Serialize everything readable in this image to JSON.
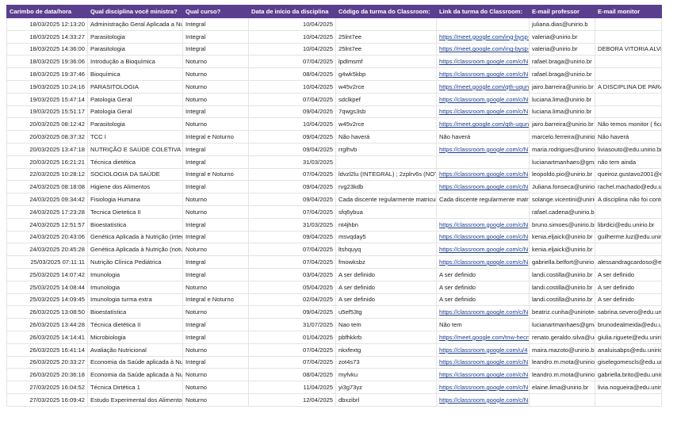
{
  "table": {
    "header": [
      "Carimbo de data/hora",
      "Qual disciplina você ministra?",
      "Qual curso?",
      "Data de início da disciplina",
      "Código da turma do Classroom:",
      "Link da turma do Classroom:",
      "E-mail professor",
      "E-mail monitor"
    ],
    "rows": [
      [
        "18/03/2025 12:13:20",
        "Administração Geral Aplicada a Nutr",
        "Integral",
        "10/04/2025",
        null,
        null,
        "juliana.dias@unirio.b",
        null
      ],
      [
        "18/03/2025 14:33:27",
        "Parasitologia",
        "Integral",
        "10/04/2025",
        "25lnt7ee",
        "https://meet.google.com/ing-bysp-",
        "valeria@unirio.br",
        null
      ],
      [
        "18/03/2025 14:36:00",
        "Parasitologia",
        "Integral",
        "10/04/2025",
        "25lnt7ee",
        "https://meet.google.com/ing-bysp-",
        "valeria@unirio.br",
        "DEBORA VITORIA ALVES"
      ],
      [
        "18/03/2025 19:36:06",
        "Introdução a Bioquímica",
        "Noturno",
        "07/04/2025",
        "lpdlmsmf",
        "https://classroom.google.com/c/N",
        "rafael.braga@unirio.br",
        null
      ],
      [
        "18/03/2025 19:37:46",
        "Bioquímica",
        "Noturno",
        "08/04/2025",
        "g4wk5kbp",
        "https://classroom.google.com/c/N",
        "rafael.braga@unirio.br",
        null
      ],
      [
        "19/03/2025 10:24:16",
        "PARASITOLOGIA",
        "Noturno",
        "10/04/2025",
        "w45v2rce",
        "https://meet.google.com/qth-uqun",
        "jairo.barreira@unirio.br",
        "A DISCIPLINA DE PARAS"
      ],
      [
        "19/03/2025 15:47:14",
        "Patologia Geral",
        "Noturno",
        "07/04/2025",
        "sdclkpef",
        "https://classroom.google.com/c/N",
        "luciana.lima@unirio.br",
        null
      ],
      [
        "19/03/2025 15:51:17",
        "Patologia Geral",
        "Integral",
        "09/04/2025",
        "7qwgs3sb",
        "https://classroom.google.com/c/N",
        "luciana.lima@unirio.br",
        null
      ],
      [
        "20/03/2025 08:12:42",
        "Parasitologia",
        "Noturno",
        "10/04/2025",
        "w45v2rce",
        "https://meet.google.com/qth-uqun",
        "jairo.barreira@unirio.br",
        "Não temos monitor ( fica"
      ],
      [
        "20/03/2025 08:37:32",
        "TCC I",
        "Integral e Noturno",
        "09/04/2025",
        "Não haverá",
        "Não haverá",
        "marcelo.ferreira@unirio.t",
        "Não haverá"
      ],
      [
        "20/03/2025 13:47:18",
        "NUTRIÇÃO E SAÚDE COLETIVA",
        "Integral",
        "09/04/2025",
        "rrglhvb",
        "https://classroom.google.com/c/N",
        "maria.rodrigues@unirio.t",
        "liviasouto@edu.unirio.br"
      ],
      [
        "20/03/2025 16:21:21",
        "Técnica dietética",
        "Integral",
        "31/03/2025",
        null,
        null,
        "lucianartmanhaes@gma",
        "não tem ainda"
      ],
      [
        "22/03/2025 10:28:12",
        "SOCIOLOGIA DA SAÚDE",
        "Integral e Noturno",
        "07/04/2025",
        "ldvzl2lu (INTEGRAL) ; 2zplrv6s (NOTUI",
        "https://classroom.google.com/c/N",
        "leopoldo.pio@unirio.br",
        "queiroz.gustavo2001@ed"
      ],
      [
        "24/03/2025 08:18:08",
        "Higiene dos Alimentos",
        "Integral",
        "09/04/2025",
        "rvg23kdb",
        "https://classroom.google.com/c/N",
        "Juliana.fonseca@unirio.b",
        "rachel.machado@edu.uni"
      ],
      [
        "24/03/2025 09:34:42",
        "Fisiologia Humana",
        "Noturno",
        "09/04/2025",
        "Cada discente regularmente matricula",
        "Cada discente regularmente matric",
        "solange.vicentini@unirio",
        "A disciplina não foi conte"
      ],
      [
        "24/03/2025 17:23:28",
        "Tecnica Dietetica II",
        "Noturno",
        "07/04/2025",
        "sfq6ybua",
        null,
        "rafael.cadena@unirio.br",
        null
      ],
      [
        "24/03/2025 12:51:57",
        "Bioestatística",
        "Integral",
        "31/03/2025",
        "nt4jhbn",
        "https://classroom.google.com/c/N",
        "bruno.simoes@unirio.br",
        "librdici@edu.unirio.br"
      ],
      [
        "24/03/2025 20:43:06",
        "Genética Aplicada à Nutrição (integr",
        "Integral",
        "09/04/2025",
        "msvqday5",
        "https://classroom.google.com/c/N",
        "kenia.eljaick@unirio.br",
        "guilherme.luz@edu.unirio"
      ],
      [
        "24/03/2025 20:45:28",
        "Genética Aplicada à Nutrição (notur",
        "Noturno",
        "07/04/2025",
        "ltshquyq",
        "https://classroom.google.com/c/N",
        "kenia.eljaick@unirio.br",
        null
      ],
      [
        "25/03/2025 07:11:11",
        "Nutrição Clínica Pediátrica",
        "Integral",
        "07/04/2025",
        "fmowksbz",
        "https://classroom.google.com/c/N",
        "gabriella.belfort@unirio.t",
        "alessandragcardoso@ed"
      ],
      [
        "25/03/2025 14:07:42",
        "Imunologia",
        "Integral",
        "03/04/2025",
        "A ser definido",
        "A ser definido",
        "landi.costilla@unirio.br",
        "A ser definido"
      ],
      [
        "25/03/2025 14:08:44",
        "Imunologia",
        "Noturno",
        "05/04/2025",
        "A ser definido",
        "A ser definido",
        "landi.costilla@unirio.br",
        "A ser definido"
      ],
      [
        "25/03/2025 14:09:45",
        "Imunologia  turma extra",
        "Integral e Noturno",
        "02/04/2025",
        "A ser definido",
        "A ser definido",
        "landi.costilla@unirio.br",
        "A ser definido"
      ],
      [
        "26/03/2025 13:08:50",
        "Bioestatística",
        "Noturno",
        "09/04/2025",
        "u5ef53tg",
        "https://classroom.google.com/c/N",
        "beatriz.cunha@uniriotec",
        "sabrina.severo@edu.unir"
      ],
      [
        "26/03/2025 13:44:28",
        "Técnica dietética II",
        "Integral",
        "31/07/2025",
        "Nao tem",
        "Não tem",
        "lucianartmanhaes@gma",
        "brunodealmeida@edu.uni"
      ],
      [
        "26/03/2025 14:14:41",
        "Microbiologia",
        "Integral",
        "01/04/2025",
        "pbfhkkrb",
        "https://meet.google.com/tnw-hecn",
        "renato.geraldo.silva@uni",
        "giulia.riguete@edu.unirio"
      ],
      [
        "26/03/2025 16:41:14",
        "Avaliação Nutricional",
        "Noturno",
        "07/04/2025",
        "nkxfextg",
        "https://classroom.google.com/u/4",
        "maira.mazoto@unirio.br",
        "analuisabps@edu.unirio"
      ],
      [
        "26/03/2025 20:33:27",
        "Economia da Saúde aplicada à Nutr",
        "Integral",
        "07/04/2025",
        "zot4s73",
        "https://classroom.google.com/c/N",
        "leandro.m.mota@unirio.t",
        "giselegomescls@edu.uni"
      ],
      [
        "26/03/2025 20:36:18",
        "Economia da Saúde aplicada à Nutri",
        "Noturno",
        "08/04/2025",
        "myfvku",
        "https://classroom.google.com/c/N",
        "leandro.m.mota@unirio.t",
        "gabriella.brito@edu.unir"
      ],
      [
        "27/03/2025 16:04:52",
        "Técnica Dirtética 1",
        "Noturno",
        "11/04/2025",
        "yi3g73yz",
        "https://classroom.google.com/c/N",
        "elaine.lima@unirio.br",
        "livia.nogueira@edu.unir"
      ],
      [
        "27/03/2025 16:09:42",
        "Estudo Experimental dos Alimentos",
        "Noturno",
        "12/04/2025",
        "dbxzibrl",
        "https://classroom.google.com/c/N",
        null,
        null
      ]
    ]
  }
}
